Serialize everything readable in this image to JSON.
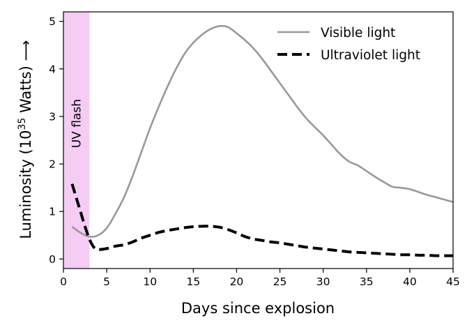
{
  "chart_data": {
    "type": "line",
    "title": "",
    "xlabel": "Days since explosion",
    "ylabel": {
      "prefix": "Luminosity (10",
      "exponent": "35",
      "suffix": " Watts) ⟶"
    },
    "xlim": [
      0,
      45
    ],
    "ylim": [
      -0.2,
      5.2
    ],
    "xticks": [
      0,
      5,
      10,
      15,
      20,
      25,
      30,
      35,
      40,
      45
    ],
    "yticks": [
      0,
      1,
      2,
      3,
      4,
      5
    ],
    "grid": false,
    "legend_position": "top-right",
    "shaded_region": {
      "x_start": 0,
      "x_end": 3,
      "label": "UV flash",
      "color": "#f3c6f3"
    },
    "series": [
      {
        "name": "Visible light",
        "style": "solid",
        "color": "#999999",
        "x": [
          1,
          2,
          3,
          4,
          5,
          6,
          7,
          8,
          9,
          10,
          11,
          12,
          13,
          14,
          15,
          16,
          17,
          18,
          19,
          20,
          21,
          22,
          23,
          24,
          25,
          26,
          27,
          28,
          29,
          30,
          31,
          32,
          33,
          34,
          35,
          36,
          37,
          38,
          39,
          40,
          41,
          42,
          43,
          44,
          45
        ],
        "y": [
          0.68,
          0.55,
          0.47,
          0.5,
          0.65,
          0.95,
          1.3,
          1.75,
          2.25,
          2.75,
          3.2,
          3.62,
          4.0,
          4.32,
          4.55,
          4.72,
          4.84,
          4.9,
          4.88,
          4.75,
          4.6,
          4.42,
          4.2,
          3.95,
          3.7,
          3.45,
          3.2,
          2.97,
          2.78,
          2.6,
          2.4,
          2.2,
          2.05,
          1.97,
          1.85,
          1.73,
          1.62,
          1.52,
          1.5,
          1.47,
          1.41,
          1.35,
          1.3,
          1.25,
          1.2
        ]
      },
      {
        "name": "Ultraviolet light",
        "style": "dashed",
        "color": "#000000",
        "x": [
          1,
          1.5,
          2,
          2.5,
          3,
          3.5,
          4,
          5,
          6,
          7,
          8,
          9,
          10,
          11,
          12,
          13,
          14,
          15,
          16,
          17,
          18,
          19,
          20,
          21,
          22,
          23,
          24,
          25,
          26,
          27,
          28,
          29,
          30,
          31,
          32,
          33,
          34,
          35,
          36,
          37,
          38,
          39,
          40,
          41,
          42,
          43,
          44,
          45
        ],
        "y": [
          1.58,
          1.28,
          0.98,
          0.68,
          0.42,
          0.25,
          0.2,
          0.22,
          0.27,
          0.3,
          0.36,
          0.44,
          0.5,
          0.56,
          0.6,
          0.63,
          0.66,
          0.68,
          0.69,
          0.69,
          0.67,
          0.62,
          0.55,
          0.47,
          0.42,
          0.39,
          0.36,
          0.34,
          0.31,
          0.28,
          0.25,
          0.23,
          0.21,
          0.19,
          0.17,
          0.15,
          0.14,
          0.13,
          0.12,
          0.11,
          0.1,
          0.09,
          0.09,
          0.08,
          0.08,
          0.07,
          0.07,
          0.07
        ]
      }
    ]
  }
}
